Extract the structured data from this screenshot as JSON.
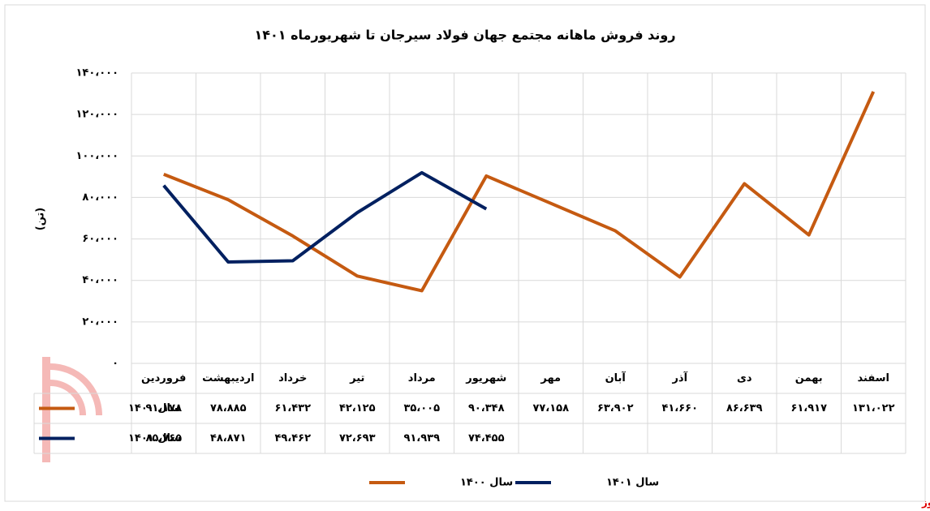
{
  "chart_data": {
    "type": "line",
    "title": "روند فروش ماهانه مجتمع جهان فولاد سیرجان تا شهریورماه ۱۴۰۱",
    "y_label": "(تن)",
    "categories": [
      "فروردین",
      "اردیبهشت",
      "خرداد",
      "تیر",
      "مرداد",
      "شهریور",
      "مهر",
      "آبان",
      "آذر",
      "دی",
      "بهمن",
      "اسفند"
    ],
    "series": [
      {
        "name": "سال ۱۴۰۰",
        "color": "#c55a11",
        "values": [
          91178,
          78885,
          61432,
          42125,
          35005,
          90348,
          77158,
          63902,
          41660,
          86639,
          61917,
          131022
        ],
        "value_labels": [
          "۹۱،۱۷۸",
          "۷۸،۸۸۵",
          "۶۱،۴۳۲",
          "۴۲،۱۲۵",
          "۳۵،۰۰۵",
          "۹۰،۳۴۸",
          "۷۷،۱۵۸",
          "۶۳،۹۰۲",
          "۴۱،۶۶۰",
          "۸۶،۶۳۹",
          "۶۱،۹۱۷",
          "۱۳۱،۰۲۲"
        ]
      },
      {
        "name": "سال ۱۴۰۱",
        "color": "#002060",
        "values": [
          85765,
          48871,
          49462,
          72693,
          91939,
          74455,
          null,
          null,
          null,
          null,
          null,
          null
        ],
        "value_labels": [
          "۸۵،۷۶۵",
          "۴۸،۸۷۱",
          "۴۹،۴۶۲",
          "۷۲،۶۹۳",
          "۹۱،۹۳۹",
          "۷۴،۴۵۵",
          null,
          null,
          null,
          null,
          null,
          null
        ]
      }
    ],
    "ylim": [
      0,
      140000
    ],
    "yticks": [
      {
        "value": 0,
        "label": "۰"
      },
      {
        "value": 20000,
        "label": "۲۰،۰۰۰"
      },
      {
        "value": 40000,
        "label": "۴۰،۰۰۰"
      },
      {
        "value": 60000,
        "label": "۶۰،۰۰۰"
      },
      {
        "value": 80000,
        "label": "۸۰،۰۰۰"
      },
      {
        "value": 100000,
        "label": "۱۰۰،۰۰۰"
      },
      {
        "value": 120000,
        "label": "۱۲۰،۰۰۰"
      },
      {
        "value": 140000,
        "label": "۱۴۰،۰۰۰"
      }
    ],
    "grid": true,
    "legend": "bottom"
  },
  "watermark": "بورس نیوز"
}
